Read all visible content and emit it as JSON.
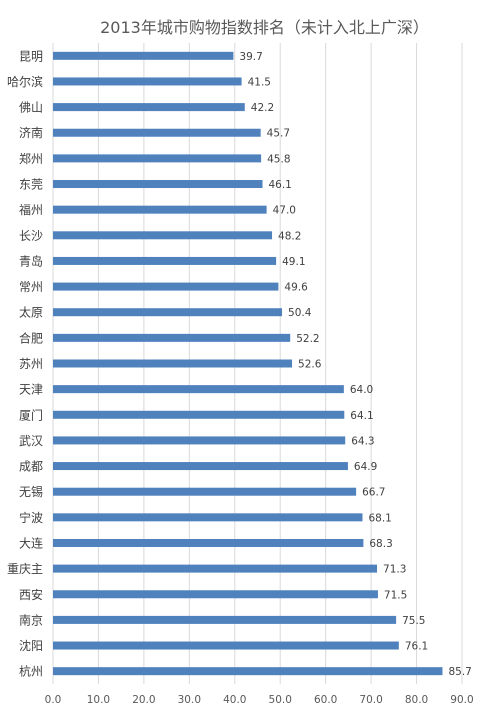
{
  "chart_data": {
    "type": "bar",
    "orientation": "horizontal",
    "title": "2013年城市购物指数排名（未计入北上广深）",
    "xlabel": "",
    "ylabel": "",
    "categories": [
      "昆明",
      "哈尔滨",
      "佛山",
      "济南",
      "郑州",
      "东莞",
      "福州",
      "长沙",
      "青岛",
      "常州",
      "太原",
      "合肥",
      "苏州",
      "天津",
      "厦门",
      "武汉",
      "成都",
      "无锡",
      "宁波",
      "大连",
      "重庆主",
      "西安",
      "南京",
      "沈阳",
      "杭州"
    ],
    "values": [
      39.7,
      41.5,
      42.2,
      45.7,
      45.8,
      46.1,
      47.0,
      48.2,
      49.1,
      49.6,
      50.4,
      52.2,
      52.6,
      64.0,
      64.1,
      64.3,
      64.9,
      66.7,
      68.1,
      68.3,
      71.3,
      71.5,
      75.5,
      76.1,
      85.7
    ],
    "value_labels": [
      "39.7",
      "41.5",
      "42.2",
      "45.7",
      "45.8",
      "46.1",
      "47.0",
      "48.2",
      "49.1",
      "49.6",
      "50.4",
      "52.2",
      "52.6",
      "64.0",
      "64.1",
      "64.3",
      "64.9",
      "66.7",
      "68.1",
      "68.3",
      "71.3",
      "71.5",
      "75.5",
      "76.1",
      "85.7"
    ],
    "xlim": [
      0,
      90
    ],
    "x_ticks": [
      "0.0",
      "10.0",
      "20.0",
      "30.0",
      "40.0",
      "50.0",
      "60.0",
      "70.0",
      "80.0",
      "90.0"
    ],
    "grid": "vertical",
    "legend": "none",
    "bar_color": "#4f81bd",
    "grid_color": "#d9d9d9"
  }
}
